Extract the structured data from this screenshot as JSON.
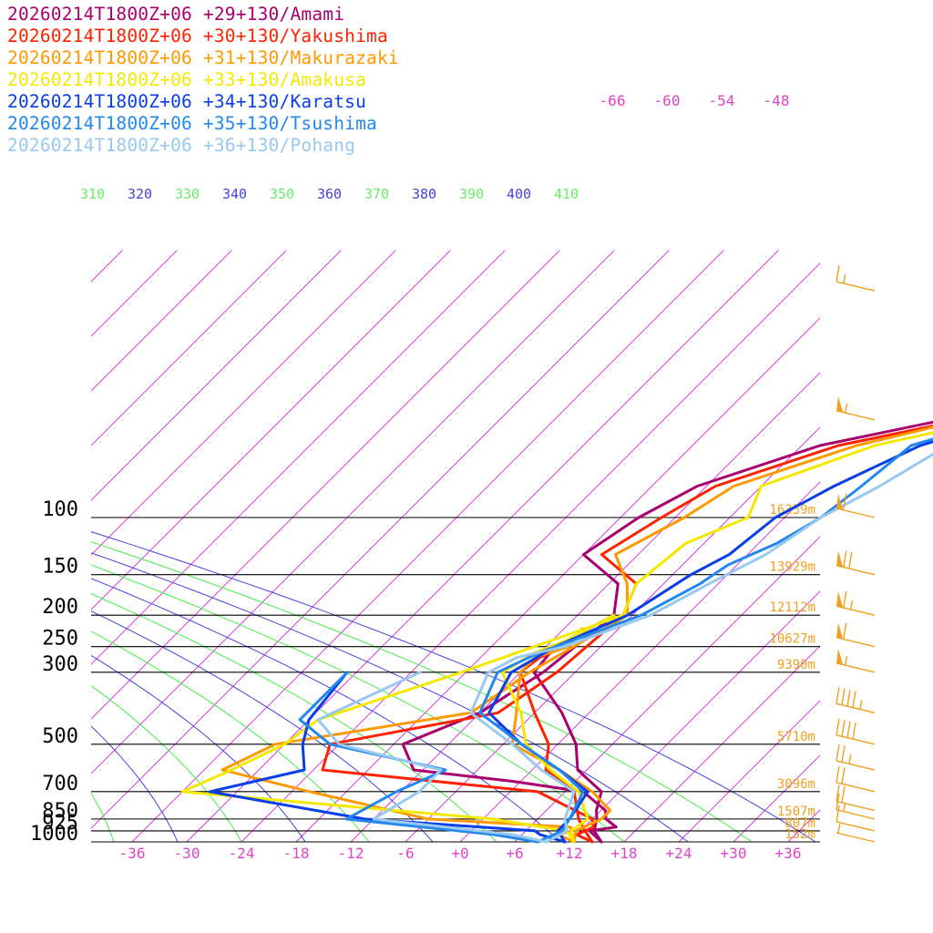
{
  "chart_data": {
    "type": "line",
    "title": "",
    "legend_position": "top-left",
    "series": [
      {
        "name": "20260214T1800Z+06 +29+130/Amami",
        "color": "#a8006e",
        "temperature": [
          [
            1000,
            15.5
          ],
          [
            925,
            13.0
          ],
          [
            900,
            15.5
          ],
          [
            850,
            13.5
          ],
          [
            800,
            12.5
          ],
          [
            700,
            8.0
          ],
          [
            650,
            -1.0
          ],
          [
            600,
            -13.0
          ],
          [
            500,
            -17.0
          ],
          [
            400,
            -12.0
          ],
          [
            300,
            -9.5
          ],
          [
            200,
            -8.0
          ],
          [
            160,
            -11.0
          ],
          [
            130,
            -18.0
          ],
          [
            100,
            -16.0
          ],
          [
            80,
            -13.0
          ],
          [
            60,
            -4.0
          ],
          [
            40,
            20.0
          ],
          [
            25,
            38.0
          ]
        ],
        "dewpoint": [
          [
            1000,
            15.5
          ],
          [
            925,
            13.5
          ],
          [
            850,
            12.5
          ],
          [
            800,
            11.5
          ],
          [
            700,
            10.0
          ],
          [
            600,
            5.0
          ],
          [
            500,
            2.0
          ],
          [
            400,
            -3.0
          ],
          [
            300,
            -10.5
          ],
          [
            250,
            -11.0
          ],
          [
            200,
            -8.0
          ]
        ]
      },
      {
        "name": "20260214T1800Z+06 +30+130/Yakushima",
        "color": "#ff2200",
        "temperature": [
          [
            1000,
            14.5
          ],
          [
            950,
            12.0
          ],
          [
            900,
            13.0
          ],
          [
            850,
            12.0
          ],
          [
            700,
            3.0
          ],
          [
            600,
            -23.0
          ],
          [
            500,
            -25.0
          ],
          [
            400,
            -10.0
          ],
          [
            300,
            -8.0
          ],
          [
            200,
            -7.0
          ],
          [
            160,
            -9.0
          ],
          [
            130,
            -16.0
          ],
          [
            100,
            -13.5
          ],
          [
            80,
            -11.0
          ],
          [
            60,
            -2.0
          ],
          [
            40,
            22.0
          ],
          [
            25,
            40.0
          ]
        ],
        "dewpoint": [
          [
            1000,
            14.5
          ],
          [
            925,
            12.5
          ],
          [
            850,
            10.5
          ],
          [
            700,
            7.0
          ],
          [
            600,
            1.5
          ],
          [
            500,
            -1.0
          ],
          [
            400,
            -6.0
          ],
          [
            300,
            -12.0
          ],
          [
            270,
            -11.5
          ],
          [
            250,
            -10.0
          ]
        ]
      },
      {
        "name": "20260214T1800Z+06 +31+130/Makurazaki",
        "color": "#ff9900",
        "temperature": [
          [
            1000,
            12.5
          ],
          [
            950,
            10.0
          ],
          [
            925,
            11.0
          ],
          [
            900,
            10.5
          ],
          [
            850,
            -6.0
          ],
          [
            700,
            -22.0
          ],
          [
            600,
            -34.0
          ],
          [
            500,
            -31.0
          ],
          [
            400,
            -13.0
          ],
          [
            300,
            -11.0
          ],
          [
            200,
            -6.5
          ],
          [
            160,
            -10.0
          ],
          [
            130,
            -14.5
          ],
          [
            100,
            -11.0
          ],
          [
            80,
            -9.0
          ],
          [
            60,
            0.0
          ],
          [
            40,
            20.0
          ],
          [
            25,
            38.0
          ]
        ],
        "dewpoint": [
          [
            1000,
            12.5
          ],
          [
            925,
            11.5
          ],
          [
            850,
            13.0
          ],
          [
            800,
            13.0
          ],
          [
            700,
            9.0
          ],
          [
            600,
            3.0
          ],
          [
            500,
            -5.0
          ],
          [
            400,
            -8.0
          ],
          [
            300,
            -12.0
          ],
          [
            270,
            -12.0
          ],
          [
            250,
            -9.5
          ],
          [
            220,
            -10.0
          ]
        ]
      },
      {
        "name": "20260214T1800Z+06 +33+130/Amakusa",
        "color": "#f4e800",
        "temperature": [
          [
            1000,
            12.5
          ],
          [
            925,
            10.5
          ],
          [
            850,
            1.0
          ],
          [
            700,
            -36.0
          ],
          [
            600,
            -33.0
          ],
          [
            500,
            -30.0
          ],
          [
            420,
            -29.0
          ],
          [
            300,
            -18.5
          ],
          [
            200,
            -7.0
          ],
          [
            160,
            -9.0
          ],
          [
            120,
            -8.0
          ],
          [
            100,
            -4.0
          ],
          [
            80,
            -6.0
          ],
          [
            60,
            2.0
          ],
          [
            40,
            24.0
          ],
          [
            25,
            40.0
          ]
        ],
        "dewpoint": [
          [
            1000,
            12.5
          ],
          [
            925,
            11.0
          ],
          [
            850,
            11.5
          ],
          [
            700,
            7.5
          ],
          [
            600,
            2.0
          ],
          [
            500,
            -3.5
          ],
          [
            400,
            -7.5
          ],
          [
            300,
            -14.0
          ],
          [
            260,
            -12.5
          ],
          [
            240,
            -10.5
          ],
          [
            200,
            -8.0
          ]
        ]
      },
      {
        "name": "20260214T1800Z+06 +34+130/Karatsu",
        "color": "#0a3ee6",
        "temperature": [
          [
            1000,
            11.5
          ],
          [
            950,
            8.0
          ],
          [
            925,
            7.0
          ],
          [
            850,
            -13.0
          ],
          [
            700,
            -33.0
          ],
          [
            600,
            -25.0
          ],
          [
            500,
            -28.0
          ],
          [
            420,
            -30.0
          ],
          [
            300,
            -31.0
          ]
        ],
        "dewpoint": [
          [
            1000,
            11.5
          ],
          [
            925,
            9.5
          ],
          [
            850,
            9.5
          ],
          [
            700,
            8.5
          ],
          [
            600,
            3.0
          ],
          [
            500,
            -4.0
          ],
          [
            400,
            -11.0
          ],
          [
            300,
            -13.0
          ],
          [
            250,
            -11.0
          ],
          [
            200,
            -6.5
          ],
          [
            150,
            -4.0
          ],
          [
            130,
            -2.0
          ],
          [
            100,
            -1.0
          ],
          [
            80,
            2.0
          ],
          [
            60,
            7.0
          ],
          [
            40,
            22.0
          ],
          [
            25,
            41.0
          ]
        ]
      },
      {
        "name": "20260214T1800Z+06 +35+130/Tsushima",
        "color": "#2288ee",
        "temperature": [
          [
            1000,
            8.5
          ],
          [
            950,
            3.0
          ],
          [
            850,
            -15.0
          ],
          [
            700,
            -12.5
          ],
          [
            600,
            -9.5
          ],
          [
            500,
            -25.0
          ],
          [
            420,
            -31.0
          ],
          [
            300,
            -31.0
          ]
        ],
        "dewpoint": [
          [
            1000,
            8.5
          ],
          [
            925,
            10.0
          ],
          [
            850,
            9.5
          ],
          [
            700,
            8.0
          ],
          [
            600,
            3.0
          ],
          [
            500,
            -4.0
          ],
          [
            400,
            -12.0
          ],
          [
            300,
            -14.5
          ],
          [
            260,
            -12.0
          ],
          [
            220,
            -7.5
          ],
          [
            200,
            -5.0
          ],
          [
            160,
            -2.0
          ],
          [
            140,
            -1.0
          ],
          [
            120,
            2.0
          ],
          [
            100,
            4.0
          ],
          [
            80,
            5.0
          ],
          [
            60,
            6.0
          ],
          [
            40,
            21.0
          ],
          [
            25,
            40.0
          ]
        ]
      },
      {
        "name": "20260214T1800Z+06 +36+130/Pohang",
        "color": "#99c8f0",
        "temperature": [
          [
            1000,
            9.5
          ],
          [
            950,
            5.0
          ],
          [
            850,
            -12.0
          ],
          [
            700,
            -10.0
          ],
          [
            600,
            -10.0
          ],
          [
            500,
            -24.0
          ],
          [
            420,
            -29.0
          ],
          [
            300,
            -23.0
          ]
        ],
        "dewpoint": [
          [
            1000,
            9.5
          ],
          [
            925,
            10.5
          ],
          [
            850,
            9.0
          ],
          [
            700,
            7.0
          ],
          [
            600,
            1.0
          ],
          [
            500,
            -5.0
          ],
          [
            400,
            -13.0
          ],
          [
            300,
            -15.5
          ],
          [
            270,
            -14.0
          ],
          [
            250,
            -10.0
          ],
          [
            200,
            -4.0
          ],
          [
            160,
            -1.0
          ],
          [
            130,
            2.0
          ],
          [
            100,
            4.0
          ],
          [
            80,
            7.0
          ],
          [
            60,
            10.0
          ],
          [
            40,
            21.0
          ],
          [
            25,
            40.0
          ]
        ]
      }
    ],
    "pressure_ticks": [
      "100",
      "150",
      "200",
      "250",
      "300",
      "500",
      "700",
      "850",
      "925",
      "1000"
    ],
    "heights": [
      {
        "p": 100,
        "label": "16359m"
      },
      {
        "p": 150,
        "label": "13929m"
      },
      {
        "p": 200,
        "label": "12112m"
      },
      {
        "p": 250,
        "label": "10627m"
      },
      {
        "p": 300,
        "label": "9390m"
      },
      {
        "p": 500,
        "label": "5710m"
      },
      {
        "p": 700,
        "label": "3096m"
      },
      {
        "p": 850,
        "label": "1507m"
      },
      {
        "p": 925,
        "label": "807m"
      },
      {
        "p": 1000,
        "label": "152m"
      }
    ],
    "x_ticks": [
      "-36",
      "-30",
      "-24",
      "-18",
      "-12",
      "-6",
      "+0",
      "+6",
      "+12",
      "+18",
      "+24",
      "+30",
      "+36"
    ],
    "upper_isotherm_labels": [
      "-66",
      "-60",
      "-54",
      "-48"
    ],
    "theta_e_labels": [
      {
        "text": "310",
        "color": "#66ee66"
      },
      {
        "text": "320",
        "color": "#4444dd"
      },
      {
        "text": "330",
        "color": "#66ee66"
      },
      {
        "text": "340",
        "color": "#4444dd"
      },
      {
        "text": "350",
        "color": "#66ee66"
      },
      {
        "text": "360",
        "color": "#4444dd"
      },
      {
        "text": "370",
        "color": "#66ee66"
      },
      {
        "text": "380",
        "color": "#4444dd"
      },
      {
        "text": "390",
        "color": "#66ee66"
      },
      {
        "text": "400",
        "color": "#4444dd"
      },
      {
        "text": "410",
        "color": "#66ee66"
      }
    ],
    "wind_barbs": [
      {
        "p": 20,
        "speed_kt": 15
      },
      {
        "p": 50,
        "speed_kt": 55
      },
      {
        "p": 100,
        "speed_kt": 60
      },
      {
        "p": 150,
        "speed_kt": 70
      },
      {
        "p": 200,
        "speed_kt": 65
      },
      {
        "p": 250,
        "speed_kt": 60
      },
      {
        "p": 300,
        "speed_kt": 55
      },
      {
        "p": 400,
        "speed_kt": 45
      },
      {
        "p": 500,
        "speed_kt": 40
      },
      {
        "p": 600,
        "speed_kt": 25
      },
      {
        "p": 700,
        "speed_kt": 20
      },
      {
        "p": 800,
        "speed_kt": 20
      },
      {
        "p": 850,
        "speed_kt": 15
      },
      {
        "p": 925,
        "speed_kt": 10
      },
      {
        "p": 1000,
        "speed_kt": 5
      }
    ],
    "colors": {
      "isotherm": "#dd22dd",
      "theta_e_a": "#4444dd",
      "theta_e_b": "#44ee44",
      "isobar": "#000000",
      "height_label": "#f0a020",
      "x_tick": "#dd44cc",
      "barb": "#f0a020"
    }
  }
}
